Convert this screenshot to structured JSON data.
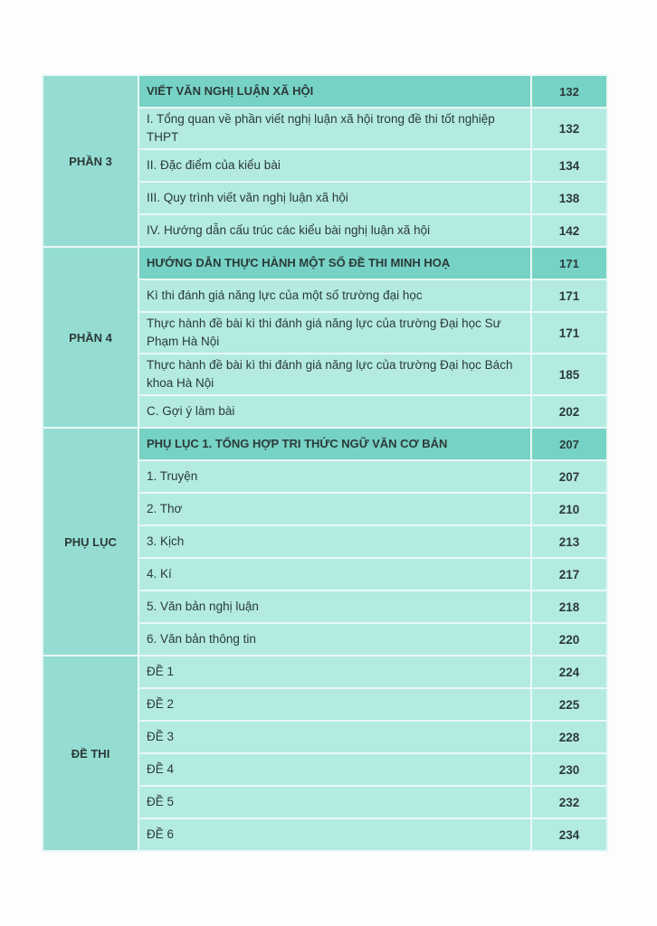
{
  "sections": [
    {
      "label": "PHẦN 3",
      "rows": [
        {
          "title": "VIẾT VĂN NGHỊ LUẬN XÃ HỘI",
          "page": "132",
          "header": true
        },
        {
          "title": "I. Tổng quan về phần viết nghị luận xã hội trong đề thi tốt nghiệp THPT",
          "page": "132",
          "two": true
        },
        {
          "title": "II. Đặc điểm của kiểu bài",
          "page": "134"
        },
        {
          "title": "III. Quy trình viết văn nghị luận xã hội",
          "page": "138"
        },
        {
          "title": "IV. Hướng dẫn cấu trúc các kiểu bài nghị luận xã hội",
          "page": "142"
        }
      ]
    },
    {
      "label": "PHẦN 4",
      "rows": [
        {
          "title": "HƯỚNG DẪN THỰC HÀNH MỘT SỐ ĐỀ THI MINH HOẠ",
          "page": "171",
          "header": true
        },
        {
          "title": "Kì thi đánh giá năng lực của một số trường đại học",
          "page": "171"
        },
        {
          "title": "Thực hành đề bài kì thi đánh giá năng lực của trường Đại học Sư Phạm Hà Nội",
          "page": "171",
          "two": true
        },
        {
          "title": "Thực hành đề bài kì thi đánh giá năng lực của trường Đại học Bách khoa Hà Nội",
          "page": "185",
          "two": true
        },
        {
          "title": "C. Gợi ý làm bài",
          "page": "202"
        }
      ]
    },
    {
      "label": "PHỤ LỤC",
      "rows": [
        {
          "title": "PHỤ LỤC 1. TỔNG HỢP TRI THỨC NGỮ VĂN CƠ BẢN",
          "page": "207",
          "header": true
        },
        {
          "title": "1. Truyện",
          "page": "207"
        },
        {
          "title": "2. Thơ",
          "page": "210"
        },
        {
          "title": "3. Kịch",
          "page": "213"
        },
        {
          "title": "4. Kí",
          "page": "217"
        },
        {
          "title": "5. Văn bản nghị luận",
          "page": "218"
        },
        {
          "title": "6. Văn bản thông tin",
          "page": "220"
        }
      ]
    },
    {
      "label": "ĐỀ THI",
      "rows": [
        {
          "title": "ĐỀ 1",
          "page": "224"
        },
        {
          "title": "ĐỀ 2",
          "page": "225"
        },
        {
          "title": "ĐỀ 3",
          "page": "228"
        },
        {
          "title": "ĐỀ 4",
          "page": "230"
        },
        {
          "title": "ĐỀ 5",
          "page": "232"
        },
        {
          "title": "ĐỀ 6",
          "page": "234"
        }
      ]
    }
  ]
}
